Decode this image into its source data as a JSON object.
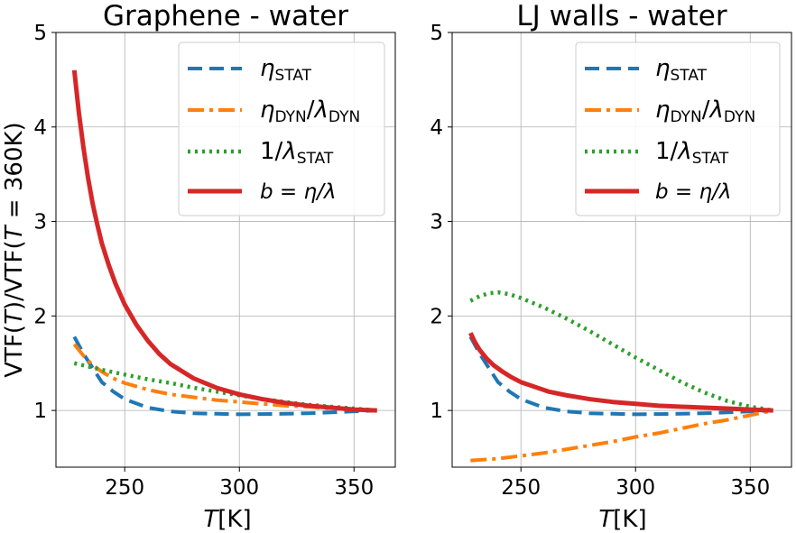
{
  "figure": {
    "ylabel": "VTF(T)/VTF(T = 360K)",
    "ylabel_parts": {
      "a": "VTF(",
      "b": "T",
      "c": ")/VTF(",
      "d": "T",
      "e": " = 360K)"
    },
    "xlabel_parts": {
      "sym": "T",
      "unit": "[K]"
    },
    "legend_labels": {
      "eta_stat": {
        "sym": "η",
        "sub": "STAT"
      },
      "eta_dyn": {
        "sym1": "η",
        "sub1": "DYN",
        "mid": "/",
        "sym2": "λ",
        "sub2": "DYN"
      },
      "inv_lambda": {
        "pre": "1/",
        "sym": "λ",
        "sub": "STAT"
      },
      "b": {
        "text": "b = η/λ"
      }
    }
  },
  "colors": {
    "eta_stat": "#1f77b4",
    "eta_dyn": "#ff7f0e",
    "inv_lambda": "#2ca02c",
    "b": "#d62728"
  },
  "chart_data": [
    {
      "type": "line",
      "title": "Graphene - water",
      "xlabel": "T[K]",
      "ylabel": "VTF(T)/VTF(T = 360K)",
      "xlim": [
        220,
        368
      ],
      "ylim": [
        0.4,
        5
      ],
      "xticks": [
        250,
        300,
        350
      ],
      "yticks": [
        1,
        2,
        3,
        4,
        5
      ],
      "legend": "top-right",
      "grid": true,
      "series": [
        {
          "name": "η_STAT",
          "key": "eta_stat",
          "x": [
            228,
            232,
            236,
            240,
            245,
            250,
            260,
            270,
            280,
            290,
            300,
            310,
            320,
            330,
            340,
            350,
            360
          ],
          "y": [
            1.78,
            1.6,
            1.45,
            1.3,
            1.2,
            1.12,
            1.03,
            0.99,
            0.97,
            0.965,
            0.96,
            0.962,
            0.965,
            0.97,
            0.98,
            0.99,
            1.0
          ]
        },
        {
          "name": "η_DYN/λ_DYN",
          "key": "eta_dyn",
          "x": [
            228,
            232,
            236,
            240,
            245,
            250,
            260,
            270,
            280,
            290,
            300,
            310,
            320,
            330,
            340,
            350,
            360
          ],
          "y": [
            1.7,
            1.58,
            1.48,
            1.41,
            1.34,
            1.29,
            1.22,
            1.17,
            1.14,
            1.11,
            1.09,
            1.07,
            1.05,
            1.04,
            1.02,
            1.01,
            1.0
          ]
        },
        {
          "name": "1/λ_STAT",
          "key": "inv_lambda",
          "x": [
            228,
            235,
            240,
            250,
            260,
            270,
            280,
            290,
            300,
            310,
            320,
            330,
            340,
            350,
            360
          ],
          "y": [
            1.5,
            1.46,
            1.43,
            1.38,
            1.33,
            1.29,
            1.24,
            1.2,
            1.16,
            1.12,
            1.09,
            1.06,
            1.04,
            1.02,
            1.0
          ]
        },
        {
          "name": "b = η/λ",
          "key": "b",
          "x": [
            228,
            230,
            232,
            234,
            236,
            238,
            240,
            243,
            246,
            250,
            255,
            260,
            265,
            270,
            280,
            290,
            300,
            310,
            320,
            330,
            340,
            350,
            360
          ],
          "y": [
            4.6,
            4.15,
            3.78,
            3.46,
            3.19,
            2.97,
            2.77,
            2.54,
            2.34,
            2.12,
            1.91,
            1.74,
            1.6,
            1.49,
            1.34,
            1.24,
            1.17,
            1.12,
            1.08,
            1.05,
            1.03,
            1.01,
            1.0
          ]
        }
      ]
    },
    {
      "type": "line",
      "title": "LJ walls - water",
      "xlabel": "T[K]",
      "ylabel": "",
      "xlim": [
        220,
        368
      ],
      "ylim": [
        0.4,
        5
      ],
      "xticks": [
        250,
        300,
        350
      ],
      "yticks": [
        1,
        2,
        3,
        4,
        5
      ],
      "legend": "top-right",
      "grid": true,
      "series": [
        {
          "name": "η_STAT",
          "key": "eta_stat",
          "x": [
            228,
            232,
            236,
            240,
            245,
            250,
            260,
            270,
            280,
            290,
            300,
            310,
            320,
            330,
            340,
            350,
            360
          ],
          "y": [
            1.78,
            1.6,
            1.45,
            1.3,
            1.2,
            1.12,
            1.03,
            0.99,
            0.97,
            0.965,
            0.96,
            0.962,
            0.965,
            0.97,
            0.98,
            0.99,
            1.0
          ]
        },
        {
          "name": "η_DYN/λ_DYN",
          "key": "eta_dyn",
          "x": [
            228,
            240,
            250,
            260,
            270,
            280,
            290,
            300,
            310,
            320,
            330,
            340,
            350,
            360
          ],
          "y": [
            0.47,
            0.49,
            0.52,
            0.55,
            0.59,
            0.63,
            0.67,
            0.72,
            0.76,
            0.81,
            0.86,
            0.9,
            0.95,
            1.0
          ]
        },
        {
          "name": "1/λ_STAT",
          "key": "inv_lambda",
          "x": [
            228,
            232,
            236,
            240,
            245,
            250,
            260,
            270,
            280,
            290,
            300,
            310,
            320,
            330,
            340,
            350,
            360
          ],
          "y": [
            2.16,
            2.21,
            2.24,
            2.25,
            2.23,
            2.19,
            2.09,
            1.97,
            1.84,
            1.7,
            1.56,
            1.43,
            1.3,
            1.19,
            1.1,
            1.04,
            1.0
          ]
        },
        {
          "name": "b = η/λ",
          "key": "b",
          "x": [
            228,
            230,
            232,
            235,
            238,
            242,
            246,
            250,
            256,
            262,
            270,
            280,
            290,
            300,
            310,
            320,
            330,
            340,
            350,
            360
          ],
          "y": [
            1.82,
            1.72,
            1.64,
            1.55,
            1.48,
            1.41,
            1.35,
            1.3,
            1.25,
            1.2,
            1.16,
            1.12,
            1.09,
            1.07,
            1.05,
            1.04,
            1.03,
            1.02,
            1.01,
            1.0
          ]
        }
      ]
    }
  ]
}
